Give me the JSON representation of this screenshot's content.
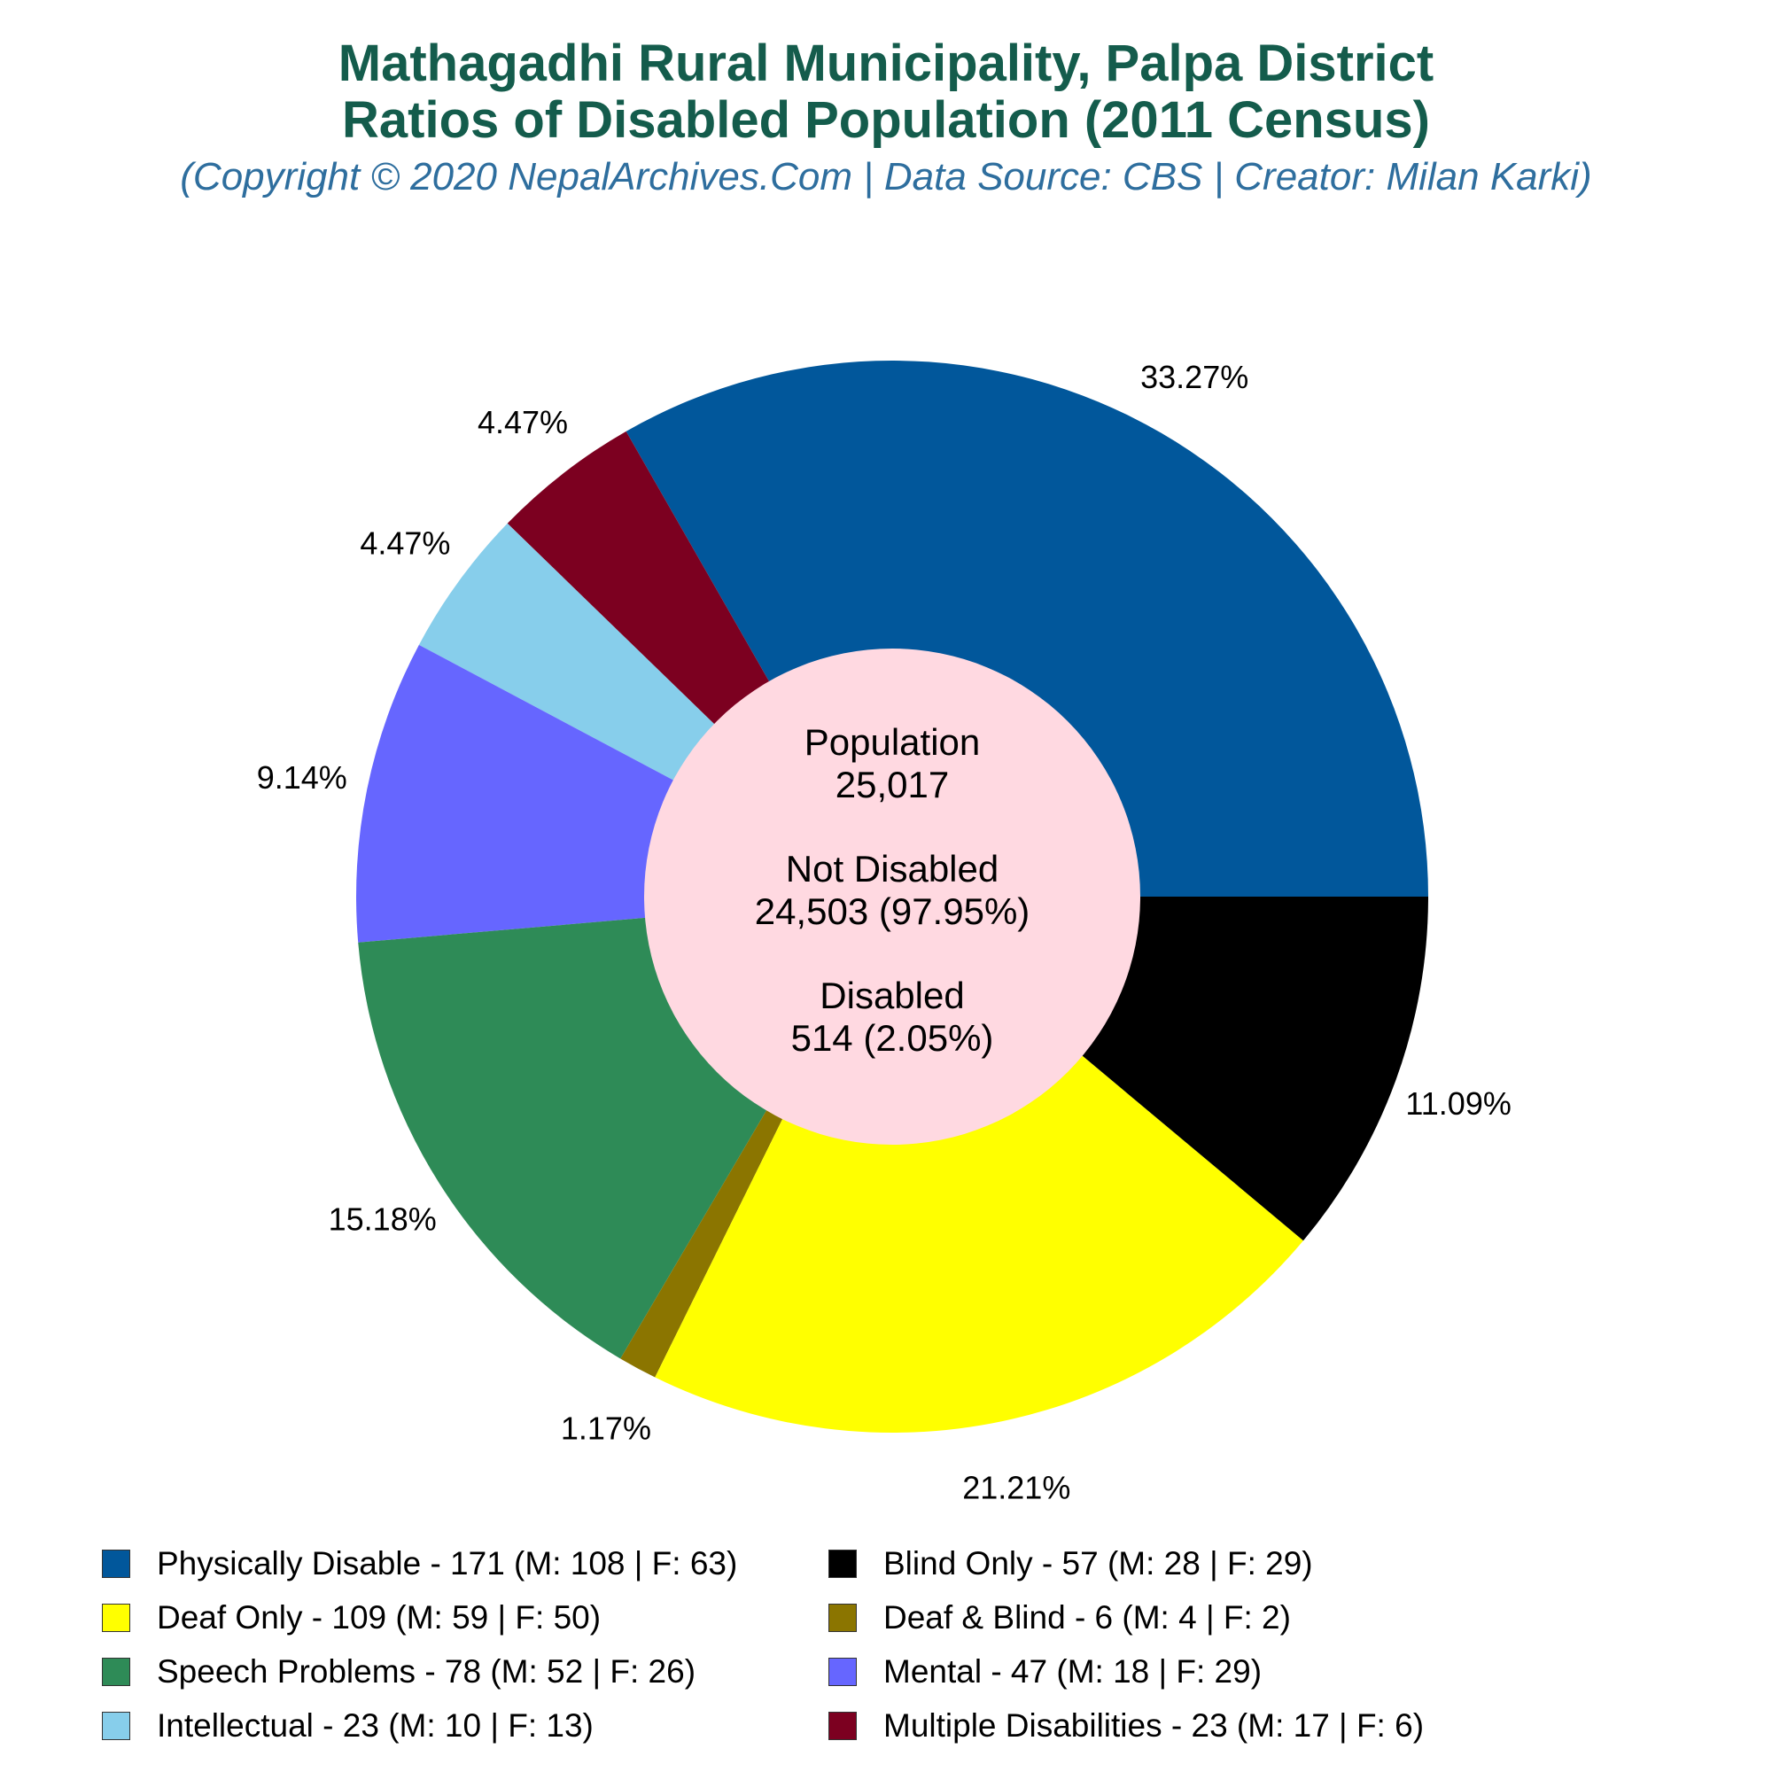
{
  "header": {
    "title_line1": "Mathagadhi Rural Municipality, Palpa District",
    "title_line2": "Ratios of Disabled Population (2011 Census)",
    "subtitle": "(Copyright © 2020 NepalArchives.Com | Data Source: CBS | Creator: Milan Karki)"
  },
  "center": {
    "population_label": "Population",
    "population_value": "25,017",
    "not_disabled_label": "Not Disabled",
    "not_disabled_value": "24,503 (97.95%)",
    "disabled_label": "Disabled",
    "disabled_value": "514 (2.05%)"
  },
  "chart_data": {
    "type": "pie",
    "title": "Mathagadhi Rural Municipality, Palpa District Ratios of Disabled Population (2011 Census)",
    "donut": true,
    "legend_position": "bottom",
    "slices": [
      {
        "legend": "Physically Disable - 171 (M: 108 | F: 63)",
        "value": 171,
        "label": "33.27%",
        "color": "#01579b"
      },
      {
        "legend": "Multiple Disabilities - 23 (M: 17 | F: 6)",
        "value": 23,
        "label": "4.47%",
        "color": "#7c0020"
      },
      {
        "legend": "Intellectual - 23 (M: 10 | F: 13)",
        "value": 23,
        "label": "4.47%",
        "color": "#87ceeb"
      },
      {
        "legend": "Mental - 47 (M: 18 | F: 29)",
        "value": 47,
        "label": "9.14%",
        "color": "#6666ff"
      },
      {
        "legend": "Speech Problems - 78 (M: 52 | F: 26)",
        "value": 78,
        "label": "15.18%",
        "color": "#2e8b57"
      },
      {
        "legend": "Deaf & Blind - 6 (M: 4 | F: 2)",
        "value": 6,
        "label": "1.17%",
        "color": "#8b7500"
      },
      {
        "legend": "Deaf Only - 109 (M: 59 | F: 50)",
        "value": 109,
        "label": "21.21%",
        "color": "#ffff00"
      },
      {
        "legend": "Blind Only - 57 (M: 28 | F: 29)",
        "value": 57,
        "label": "11.09%",
        "color": "#000000"
      }
    ],
    "legend_order": [
      0,
      7,
      6,
      5,
      4,
      3,
      2,
      1
    ]
  }
}
